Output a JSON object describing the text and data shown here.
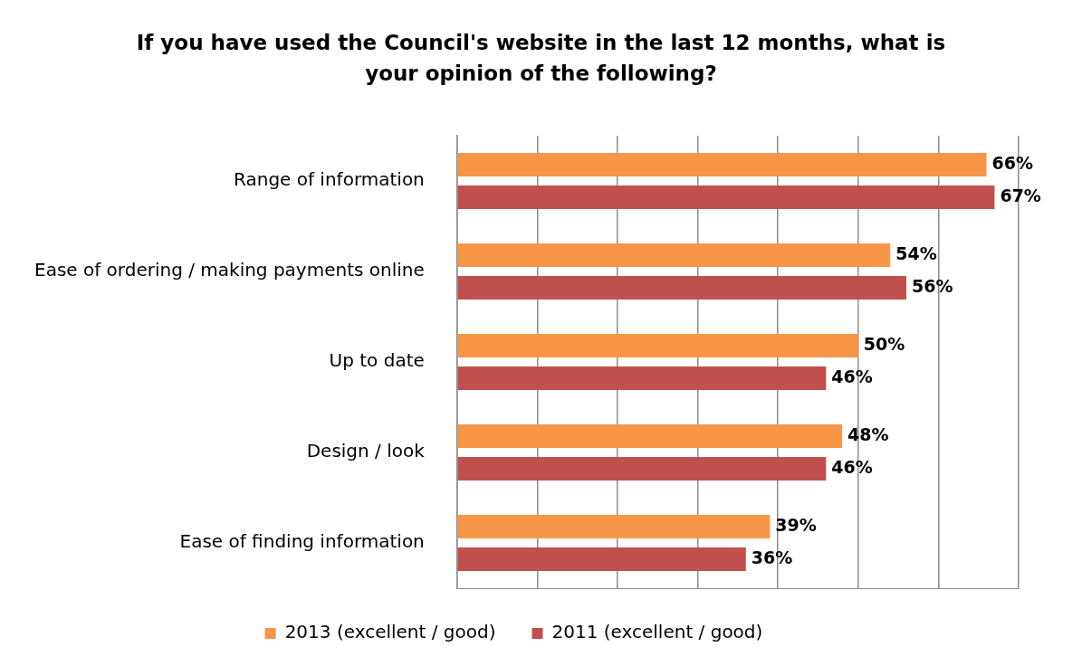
{
  "chart_data": {
    "type": "bar",
    "orientation": "horizontal",
    "title": "If you have used the Council's website in the last 12 months, what is your opinion of the following?",
    "categories": [
      "Range of information",
      "Ease of ordering / making payments online",
      "Up to date",
      "Design / look",
      "Ease of finding information"
    ],
    "series": [
      {
        "name": "2013 (excellent / good)",
        "color": "#f79646",
        "values": [
          66,
          54,
          50,
          48,
          39
        ],
        "value_labels": [
          "66%",
          "54%",
          "50%",
          "48%",
          "39%"
        ]
      },
      {
        "name": "2011 (excellent / good)",
        "color": "#c0504d",
        "values": [
          67,
          56,
          46,
          46,
          36
        ],
        "value_labels": [
          "67%",
          "56%",
          "46%",
          "46%",
          "36%"
        ]
      }
    ],
    "tick_labels": "y",
    "grid": "x",
    "legend": "bottom"
  }
}
